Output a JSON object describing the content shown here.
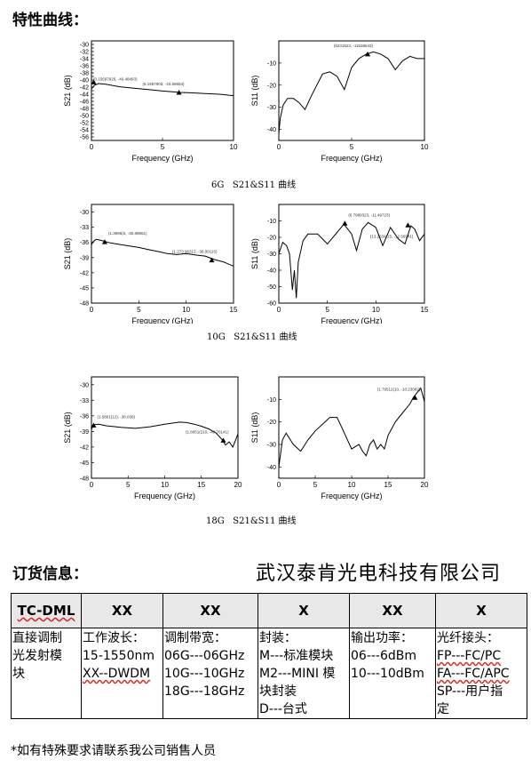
{
  "section_title": "特性曲线：",
  "captions": [
    "6G   S21&S11 曲线",
    "10G   S21&S11 曲线",
    "18G   S21&S11 曲线"
  ],
  "chart_data": [
    {
      "type": "line",
      "xlabel": "Frequency (GHz)",
      "ylabel": "S21 (dB)",
      "xlim": [
        0,
        10
      ],
      "ylim": [
        -57,
        -29
      ],
      "xticks": [
        0,
        5,
        10
      ],
      "yticks": [
        -30,
        -31,
        -32,
        -33,
        -34,
        -35,
        -36,
        -37,
        -38,
        -39,
        -40,
        -41,
        -42,
        -43,
        -44,
        -45,
        -46,
        -47,
        -48,
        -49,
        -50,
        -51,
        -52,
        -53,
        -54,
        -55,
        -56,
        -57
      ],
      "ytick_labels": [
        "-30",
        "-32",
        "-34",
        "-36",
        "-38",
        "-40",
        "-42",
        "-44",
        "-46",
        "-48",
        "-50",
        "-52",
        "-54",
        "-56"
      ],
      "series": [
        {
          "x": [
            0,
            0.2,
            0.5,
            1,
            2,
            3,
            4,
            5,
            6,
            6.2,
            7,
            8,
            9,
            10
          ],
          "y": [
            -42.5,
            -41.5,
            -41,
            -41.2,
            -41.9,
            -42.3,
            -42.7,
            -43.1,
            -43.4,
            -43.5,
            -43.6,
            -43.8,
            -44,
            -44.4
          ]
        }
      ],
      "annotations": [
        {
          "text": "(0.15697926, -40.48493)",
          "x": 0.16,
          "y": -40.6
        },
        {
          "text": "(6.1567903, -43.55653)",
          "x": 6.16,
          "y": -43.5
        }
      ]
    },
    {
      "type": "line",
      "xlabel": "Frequency (GHz)",
      "ylabel": "S11 (dB)",
      "xlim": [
        0,
        10
      ],
      "ylim": [
        -45,
        0
      ],
      "xticks": [
        0,
        5,
        10
      ],
      "yticks": [
        -10,
        -20,
        -30,
        -40
      ],
      "series": [
        {
          "x": [
            0,
            0.1,
            0.3,
            0.6,
            1,
            1.4,
            1.8,
            2.3,
            3,
            3.5,
            4,
            4.5,
            5,
            5.5,
            6,
            6.5,
            7,
            7.5,
            8,
            8.5,
            9,
            9.5,
            10
          ],
          "y": [
            -42,
            -35,
            -29,
            -26,
            -26,
            -28,
            -31,
            -24,
            -15,
            -14,
            -16,
            -22,
            -12,
            -8,
            -6,
            -5,
            -6,
            -8,
            -13,
            -9,
            -7,
            -8,
            -8
          ]
        }
      ],
      "annotations": [
        {
          "text": "(6231523, -11638643)",
          "x": 6.1,
          "y": -6
        }
      ]
    },
    {
      "type": "line",
      "xlabel": "Frequency (GHz)",
      "ylabel": "S21 (dB)",
      "xlim": [
        0,
        15
      ],
      "ylim": [
        -48,
        -28.5
      ],
      "xticks": [
        0,
        5,
        10,
        15
      ],
      "yticks": [
        -30,
        -33,
        -36,
        -39,
        -42,
        -45,
        -48
      ],
      "series": [
        {
          "x": [
            0,
            0.2,
            0.5,
            1,
            2,
            3,
            4,
            5,
            6,
            7,
            8,
            9,
            10,
            11,
            12,
            13,
            14,
            15
          ],
          "y": [
            -36.5,
            -35.8,
            -35.4,
            -35.6,
            -36.1,
            -36.4,
            -36.7,
            -37,
            -37.4,
            -37.8,
            -38.2,
            -38.4,
            -38.2,
            -38.5,
            -38.7,
            -39.4,
            -39.9,
            -40.7
          ]
        }
      ],
      "annotations": [
        {
          "text": "(1.3995(5, -35.88551)",
          "x": 1.4,
          "y": -35.9
        },
        {
          "text": "(1.273 96313, -38.90115)",
          "x": 12.7,
          "y": -39.5
        }
      ]
    },
    {
      "type": "line",
      "xlabel": "Frequency (GHz)",
      "ylabel": "S11 (dB)",
      "xlim": [
        0,
        15
      ],
      "ylim": [
        -60,
        0
      ],
      "xticks": [
        0,
        5,
        10,
        15
      ],
      "yticks": [
        -10,
        -20,
        -30,
        -40,
        -50,
        -60
      ],
      "series": [
        {
          "x": [
            0,
            0.4,
            0.8,
            1.1,
            1.4,
            1.6,
            1.8,
            2,
            2.5,
            3,
            4,
            5,
            6,
            6.7,
            7.5,
            8,
            8.6,
            9.2,
            10,
            10.7,
            11.5,
            12.3,
            13,
            13.6,
            14,
            14.5,
            15
          ],
          "y": [
            -30,
            -23,
            -25,
            -30,
            -52,
            -40,
            -57,
            -35,
            -22,
            -18,
            -18,
            -24,
            -17,
            -12,
            -18,
            -28,
            -15,
            -11,
            -14,
            -25,
            -14,
            -21,
            -24,
            -13,
            -15,
            -22,
            -18
          ]
        }
      ],
      "annotations": [
        {
          "text": "(6.7989323, -11.49723)",
          "x": 6.8,
          "y": -11.5
        },
        {
          "text": "(13.2634(15, -12.56941)",
          "x": 13.3,
          "y": -12.6
        }
      ]
    },
    {
      "type": "line",
      "xlabel": "Frequency (GHz)",
      "ylabel": "S21 (dB)",
      "xlim": [
        0,
        20
      ],
      "ylim": [
        -48,
        -28.5
      ],
      "xticks": [
        0,
        5,
        10,
        15,
        20
      ],
      "yticks": [
        -30,
        -33,
        -36,
        -39,
        -42,
        -45,
        -48
      ],
      "series": [
        {
          "x": [
            0,
            0.3,
            1,
            2,
            4,
            6,
            8,
            10,
            12,
            13,
            14,
            15,
            16,
            17,
            17.8,
            18.3,
            18.8,
            19.3,
            20
          ],
          "y": [
            -38.6,
            -37.7,
            -37.6,
            -37.9,
            -38.2,
            -38.4,
            -38.1,
            -37.6,
            -37.2,
            -37.3,
            -37.6,
            -38,
            -38.5,
            -39.3,
            -40.5,
            -41.6,
            -41,
            -42,
            -39.5
          ]
        }
      ],
      "annotations": [
        {
          "text": "(1.5801(12), -38.036)",
          "x": 0.3,
          "y": -37.8
        },
        {
          "text": "(1.8051(210, -40.70141)",
          "x": 18,
          "y": -40.7
        }
      ]
    },
    {
      "type": "line",
      "xlabel": "Frequency (GHz)",
      "ylabel": "S11 (dB)",
      "xlim": [
        0,
        20
      ],
      "ylim": [
        -45,
        0
      ],
      "xticks": [
        0,
        5,
        10,
        15,
        20
      ],
      "yticks": [
        -10,
        -20,
        -30,
        -40
      ],
      "series": [
        {
          "x": [
            0,
            0.5,
            1,
            2,
            3,
            4,
            5,
            6,
            7,
            8,
            9,
            10,
            11,
            11.5,
            12,
            12.5,
            13,
            13.5,
            14,
            14.5,
            15,
            16,
            17,
            18,
            18.5,
            19,
            19.5,
            20
          ],
          "y": [
            -40,
            -28,
            -25,
            -30,
            -33,
            -28,
            -24,
            -21,
            -18,
            -18,
            -25,
            -32,
            -30,
            -33,
            -35,
            -30,
            -28,
            -32,
            -30,
            -32,
            -26,
            -20,
            -16,
            -12,
            -9,
            -7,
            -5,
            -11
          ]
        }
      ],
      "annotations": [
        {
          "text": "(1.79512(10, -10.23082)",
          "x": 18.7,
          "y": -9.2
        }
      ]
    }
  ],
  "order": {
    "title": "订货信息：",
    "company": "武汉泰肯光电科技有限公司",
    "headers": [
      "TC-DML",
      "XX",
      "XX",
      "X",
      "XX",
      "X"
    ],
    "col1": [
      "直接调制",
      "光发射模",
      "块"
    ],
    "col2": [
      "工作波长：",
      "15-1550nm",
      "XX--DWDM"
    ],
    "col3": [
      "调制带宽：",
      "06G---06GHz",
      "10G---10GHz",
      "18G---18GHz"
    ],
    "col4": [
      "封装：",
      "M---标准模块",
      "M2---MINI 模",
      "块封装",
      "D---台式"
    ],
    "col5": [
      "输出功率：",
      "06---6dBm",
      "10---10dBm"
    ],
    "col6": [
      "光纤接头：",
      "FP---FC/PC",
      "FA---FC/APC",
      "SP---用户指",
      "定"
    ],
    "footnote": "*如有特殊要求请联系我公司销售人员"
  }
}
